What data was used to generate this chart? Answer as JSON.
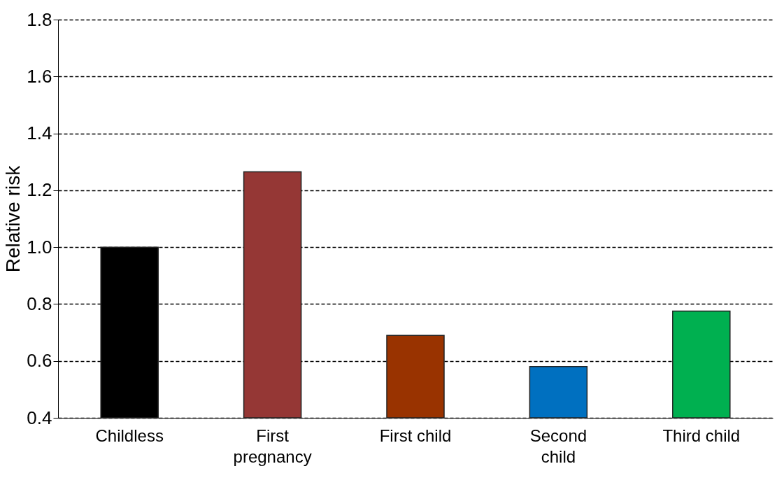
{
  "chart_data": {
    "type": "bar",
    "ylabel": "Relative risk",
    "categories": [
      "Childless",
      "First pregnancy",
      "First child",
      "Second child",
      "Third child"
    ],
    "values": [
      1.0,
      1.265,
      0.69,
      0.58,
      0.775
    ],
    "colors": [
      "#000000",
      "#953735",
      "#993300",
      "#0070c0",
      "#00b050"
    ],
    "ylim": [
      0.4,
      1.8
    ],
    "yticks": [
      {
        "value": 0.4,
        "label": "0.4"
      },
      {
        "value": 0.6,
        "label": "0.6"
      },
      {
        "value": 0.8,
        "label": "0.8"
      },
      {
        "value": 1.0,
        "label": "1.0"
      },
      {
        "value": 1.2,
        "label": "1.2"
      },
      {
        "value": 1.4,
        "label": "1.4"
      },
      {
        "value": 1.6,
        "label": "1.6"
      },
      {
        "value": 1.8,
        "label": "1.8"
      }
    ],
    "grid": "y"
  }
}
